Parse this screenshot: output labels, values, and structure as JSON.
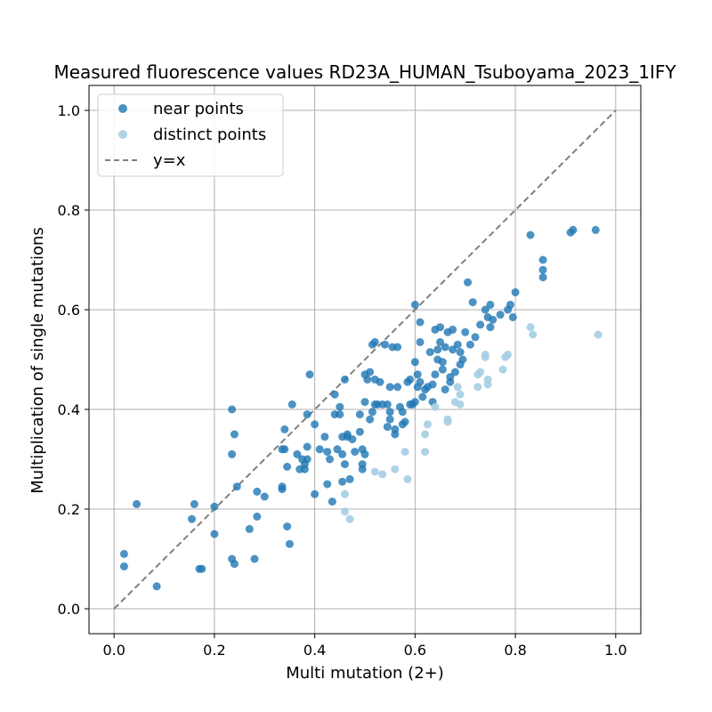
{
  "chart_data": {
    "type": "scatter",
    "title": "Measured fluorescence values RD23A_HUMAN_Tsuboyama_2023_1IFY",
    "xlabel": "Multi mutation (2+)",
    "ylabel": "Multiplication of single mutations",
    "xlim": [
      -0.05,
      1.05
    ],
    "ylim": [
      -0.05,
      1.05
    ],
    "xticks": [
      "0.0",
      "0.2",
      "0.4",
      "0.6",
      "0.8",
      "1.0"
    ],
    "yticks": [
      "0.0",
      "0.2",
      "0.4",
      "0.6",
      "0.8",
      "1.0"
    ],
    "xtick_values": [
      0,
      0.2,
      0.4,
      0.6,
      0.8,
      1.0
    ],
    "ytick_values": [
      0,
      0.2,
      0.4,
      0.6,
      0.8,
      1.0
    ],
    "grid": true,
    "legend_position": "top-left",
    "series": [
      {
        "name": "near points",
        "color": "#1f77b4",
        "marker": "circle",
        "points": [
          [
            0.02,
            0.11
          ],
          [
            0.02,
            0.085
          ],
          [
            0.045,
            0.21
          ],
          [
            0.085,
            0.045
          ],
          [
            0.155,
            0.18
          ],
          [
            0.16,
            0.21
          ],
          [
            0.17,
            0.08
          ],
          [
            0.175,
            0.08
          ],
          [
            0.2,
            0.205
          ],
          [
            0.2,
            0.15
          ],
          [
            0.235,
            0.4
          ],
          [
            0.235,
            0.31
          ],
          [
            0.24,
            0.35
          ],
          [
            0.245,
            0.245
          ],
          [
            0.235,
            0.1
          ],
          [
            0.24,
            0.09
          ],
          [
            0.27,
            0.16
          ],
          [
            0.28,
            0.1
          ],
          [
            0.285,
            0.235
          ],
          [
            0.285,
            0.185
          ],
          [
            0.3,
            0.225
          ],
          [
            0.335,
            0.32
          ],
          [
            0.335,
            0.24
          ],
          [
            0.335,
            0.245
          ],
          [
            0.34,
            0.36
          ],
          [
            0.34,
            0.32
          ],
          [
            0.345,
            0.285
          ],
          [
            0.345,
            0.165
          ],
          [
            0.35,
            0.13
          ],
          [
            0.355,
            0.41
          ],
          [
            0.365,
            0.31
          ],
          [
            0.37,
            0.28
          ],
          [
            0.375,
            0.3
          ],
          [
            0.38,
            0.29
          ],
          [
            0.38,
            0.28
          ],
          [
            0.385,
            0.3
          ],
          [
            0.385,
            0.39
          ],
          [
            0.385,
            0.325
          ],
          [
            0.39,
            0.47
          ],
          [
            0.4,
            0.37
          ],
          [
            0.4,
            0.23
          ],
          [
            0.41,
            0.32
          ],
          [
            0.42,
            0.345
          ],
          [
            0.425,
            0.315
          ],
          [
            0.425,
            0.25
          ],
          [
            0.43,
            0.3
          ],
          [
            0.435,
            0.215
          ],
          [
            0.44,
            0.43
          ],
          [
            0.44,
            0.39
          ],
          [
            0.445,
            0.32
          ],
          [
            0.45,
            0.405
          ],
          [
            0.45,
            0.39
          ],
          [
            0.455,
            0.31
          ],
          [
            0.455,
            0.345
          ],
          [
            0.455,
            0.255
          ],
          [
            0.46,
            0.46
          ],
          [
            0.46,
            0.29
          ],
          [
            0.465,
            0.35
          ],
          [
            0.465,
            0.345
          ],
          [
            0.47,
            0.26
          ],
          [
            0.475,
            0.34
          ],
          [
            0.48,
            0.315
          ],
          [
            0.49,
            0.39
          ],
          [
            0.49,
            0.355
          ],
          [
            0.495,
            0.32
          ],
          [
            0.495,
            0.29
          ],
          [
            0.495,
            0.28
          ],
          [
            0.5,
            0.31
          ],
          [
            0.5,
            0.415
          ],
          [
            0.5,
            0.47
          ],
          [
            0.505,
            0.46
          ],
          [
            0.51,
            0.475
          ],
          [
            0.51,
            0.38
          ],
          [
            0.515,
            0.53
          ],
          [
            0.515,
            0.395
          ],
          [
            0.52,
            0.535
          ],
          [
            0.52,
            0.46
          ],
          [
            0.52,
            0.41
          ],
          [
            0.525,
            0.41
          ],
          [
            0.53,
            0.455
          ],
          [
            0.535,
            0.41
          ],
          [
            0.54,
            0.53
          ],
          [
            0.545,
            0.41
          ],
          [
            0.545,
            0.365
          ],
          [
            0.55,
            0.445
          ],
          [
            0.55,
            0.395
          ],
          [
            0.55,
            0.38
          ],
          [
            0.555,
            0.525
          ],
          [
            0.56,
            0.35
          ],
          [
            0.56,
            0.36
          ],
          [
            0.565,
            0.525
          ],
          [
            0.565,
            0.445
          ],
          [
            0.57,
            0.405
          ],
          [
            0.575,
            0.395
          ],
          [
            0.575,
            0.37
          ],
          [
            0.58,
            0.375
          ],
          [
            0.585,
            0.455
          ],
          [
            0.59,
            0.46
          ],
          [
            0.59,
            0.41
          ],
          [
            0.595,
            0.41
          ],
          [
            0.6,
            0.61
          ],
          [
            0.6,
            0.495
          ],
          [
            0.6,
            0.415
          ],
          [
            0.605,
            0.445
          ],
          [
            0.605,
            0.47
          ],
          [
            0.61,
            0.535
          ],
          [
            0.61,
            0.575
          ],
          [
            0.61,
            0.455
          ],
          [
            0.615,
            0.425
          ],
          [
            0.62,
            0.44
          ],
          [
            0.625,
            0.445
          ],
          [
            0.63,
            0.515
          ],
          [
            0.635,
            0.45
          ],
          [
            0.635,
            0.415
          ],
          [
            0.64,
            0.56
          ],
          [
            0.64,
            0.47
          ],
          [
            0.645,
            0.52
          ],
          [
            0.645,
            0.5
          ],
          [
            0.65,
            0.565
          ],
          [
            0.65,
            0.535
          ],
          [
            0.655,
            0.495
          ],
          [
            0.655,
            0.48
          ],
          [
            0.66,
            0.525
          ],
          [
            0.66,
            0.44
          ],
          [
            0.665,
            0.555
          ],
          [
            0.67,
            0.455
          ],
          [
            0.67,
            0.465
          ],
          [
            0.675,
            0.52
          ],
          [
            0.675,
            0.56
          ],
          [
            0.68,
            0.475
          ],
          [
            0.685,
            0.53
          ],
          [
            0.69,
            0.515
          ],
          [
            0.69,
            0.49
          ],
          [
            0.695,
            0.5
          ],
          [
            0.7,
            0.555
          ],
          [
            0.705,
            0.655
          ],
          [
            0.71,
            0.53
          ],
          [
            0.715,
            0.615
          ],
          [
            0.72,
            0.545
          ],
          [
            0.73,
            0.57
          ],
          [
            0.74,
            0.6
          ],
          [
            0.745,
            0.585
          ],
          [
            0.75,
            0.61
          ],
          [
            0.75,
            0.565
          ],
          [
            0.755,
            0.58
          ],
          [
            0.77,
            0.59
          ],
          [
            0.785,
            0.6
          ],
          [
            0.79,
            0.61
          ],
          [
            0.795,
            0.585
          ],
          [
            0.8,
            0.635
          ],
          [
            0.83,
            0.75
          ],
          [
            0.855,
            0.7
          ],
          [
            0.855,
            0.68
          ],
          [
            0.855,
            0.665
          ],
          [
            0.91,
            0.755
          ],
          [
            0.915,
            0.76
          ],
          [
            0.96,
            0.76
          ]
        ]
      },
      {
        "name": "distinct points",
        "color": "#a6cee3",
        "marker": "circle",
        "points": [
          [
            0.46,
            0.23
          ],
          [
            0.46,
            0.195
          ],
          [
            0.47,
            0.18
          ],
          [
            0.52,
            0.275
          ],
          [
            0.535,
            0.27
          ],
          [
            0.56,
            0.28
          ],
          [
            0.58,
            0.315
          ],
          [
            0.585,
            0.26
          ],
          [
            0.62,
            0.35
          ],
          [
            0.62,
            0.315
          ],
          [
            0.625,
            0.37
          ],
          [
            0.64,
            0.405
          ],
          [
            0.665,
            0.375
          ],
          [
            0.665,
            0.38
          ],
          [
            0.68,
            0.415
          ],
          [
            0.685,
            0.445
          ],
          [
            0.69,
            0.43
          ],
          [
            0.69,
            0.41
          ],
          [
            0.725,
            0.445
          ],
          [
            0.725,
            0.47
          ],
          [
            0.73,
            0.475
          ],
          [
            0.74,
            0.505
          ],
          [
            0.74,
            0.51
          ],
          [
            0.745,
            0.45
          ],
          [
            0.745,
            0.46
          ],
          [
            0.775,
            0.48
          ],
          [
            0.78,
            0.505
          ],
          [
            0.785,
            0.51
          ],
          [
            0.83,
            0.565
          ],
          [
            0.835,
            0.55
          ],
          [
            0.965,
            0.55
          ]
        ]
      }
    ],
    "reference_line": {
      "name": "y=x",
      "color": "#7f7f7f",
      "style": "dashed",
      "from": [
        0,
        0
      ],
      "to": [
        1,
        1
      ]
    }
  }
}
